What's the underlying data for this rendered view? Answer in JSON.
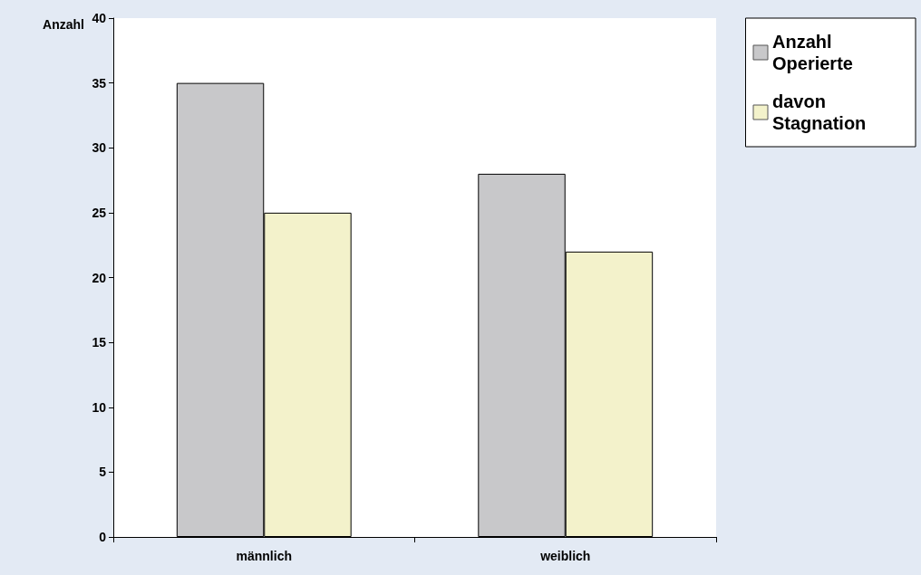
{
  "chart_data": {
    "type": "bar",
    "ylabel": "Anzahl",
    "categories": [
      "männlich",
      "weiblich"
    ],
    "series": [
      {
        "name": "Anzahl Operierte",
        "color": "#c8c8ca",
        "values": [
          35,
          28
        ]
      },
      {
        "name": "davon Stagnation",
        "color": "#f3f2cb",
        "values": [
          25,
          22
        ]
      }
    ],
    "ylim": [
      0,
      40
    ],
    "yticks": [
      0,
      5,
      10,
      15,
      20,
      25,
      30,
      35,
      40
    ],
    "grid": false,
    "legend": "top right"
  }
}
